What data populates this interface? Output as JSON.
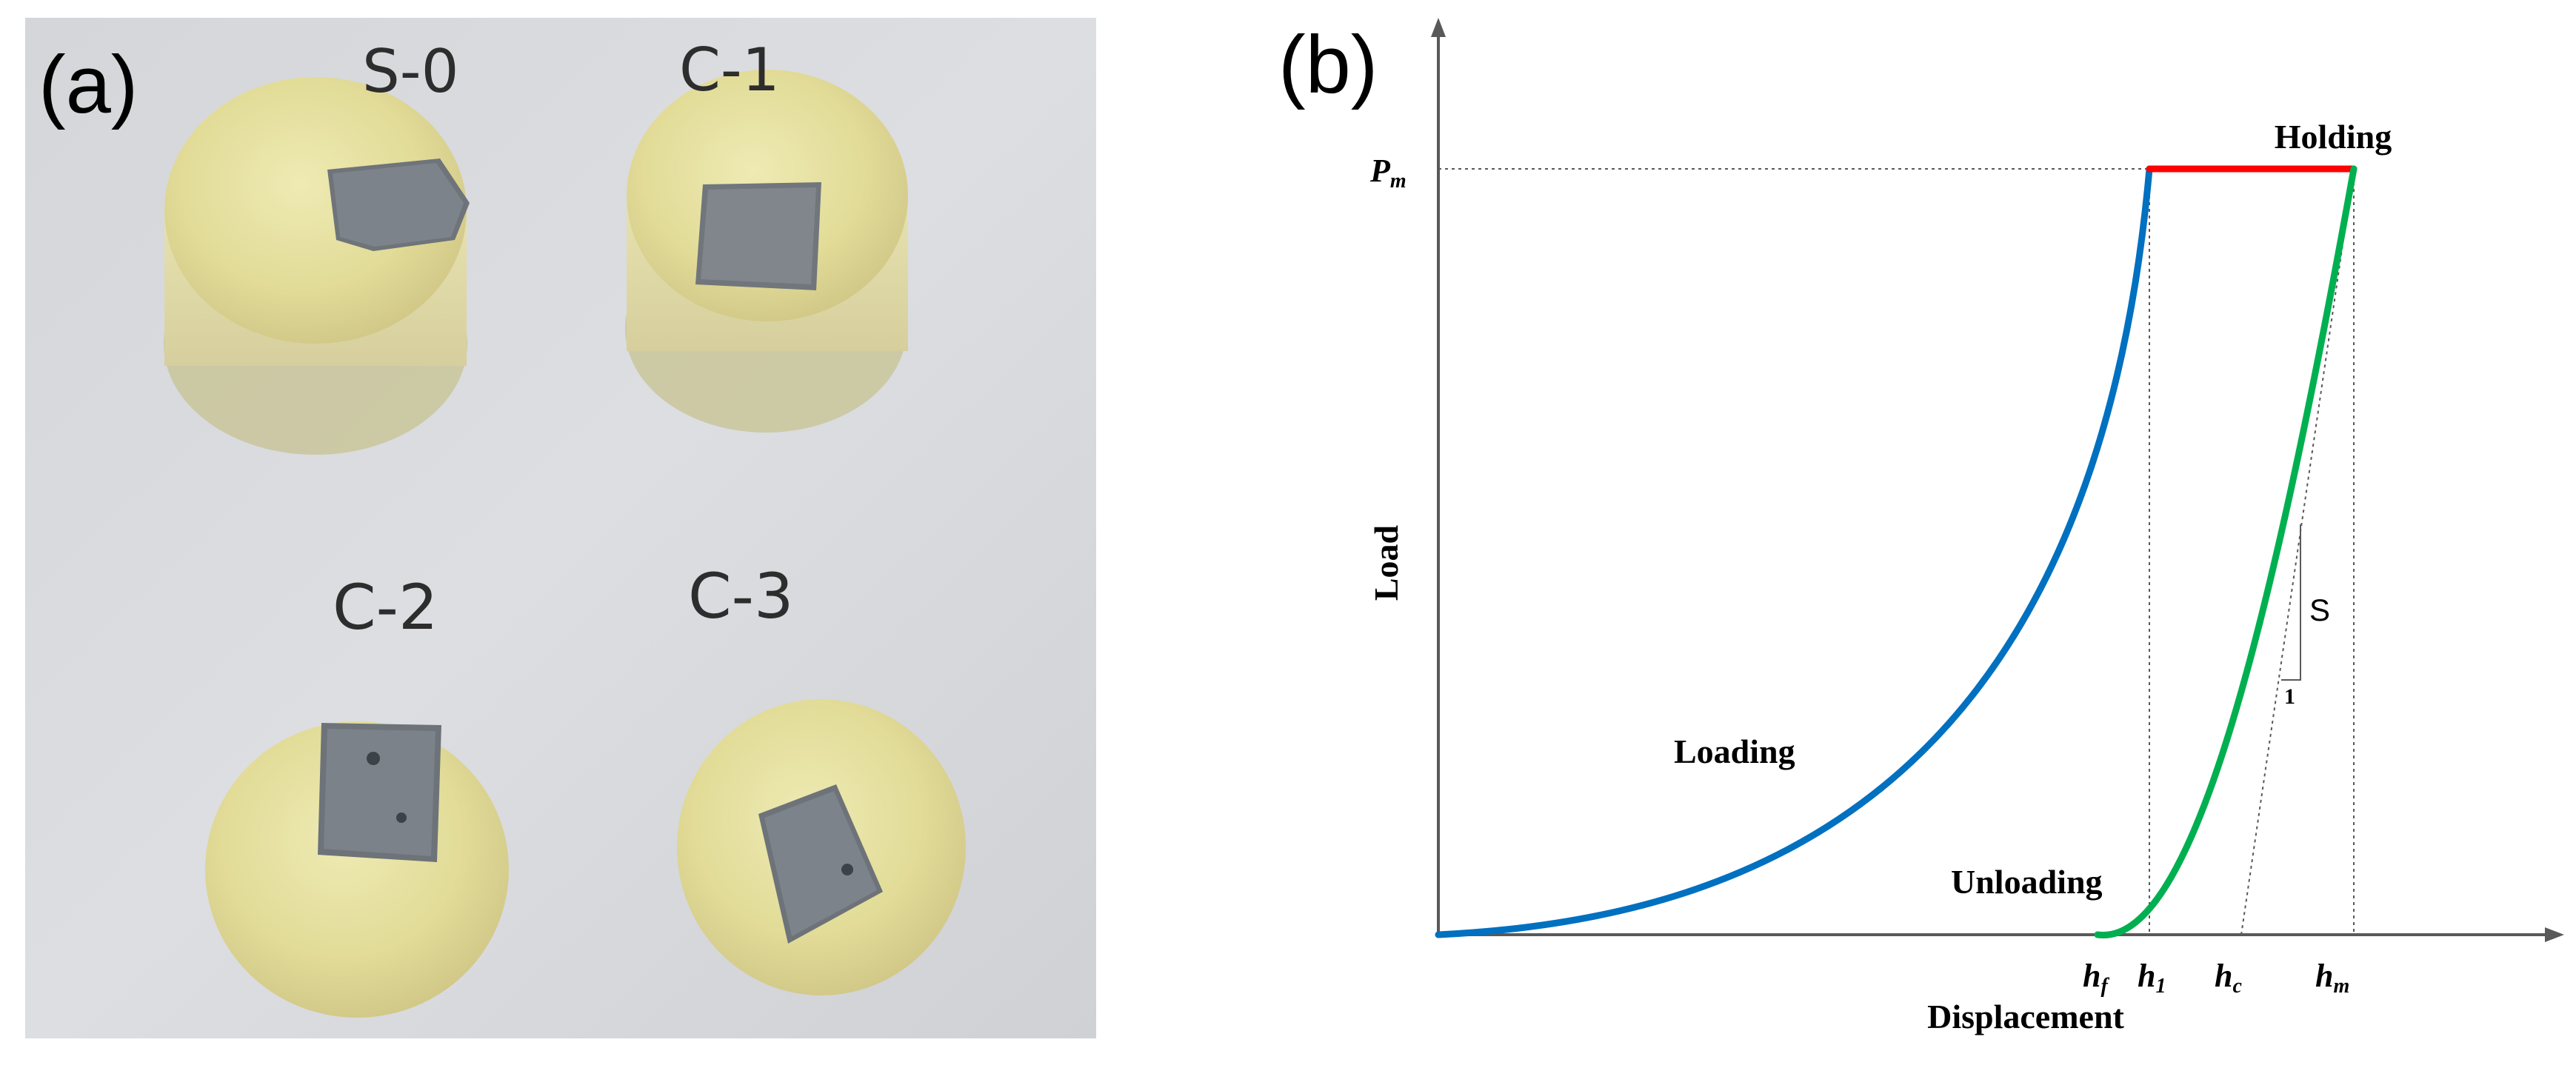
{
  "panel_a": {
    "label": "(a)",
    "samples": [
      {
        "label": "S-0"
      },
      {
        "label": "C-1"
      },
      {
        "label": "C-2"
      },
      {
        "label": "C-3"
      }
    ]
  },
  "panel_b": {
    "label": "(b)",
    "y_axis_label": "Load",
    "x_axis_label": "Displacement",
    "pm_label": "P",
    "pm_sub": "m",
    "holding_label": "Holding",
    "loading_label": "Loading",
    "unloading_label": "Unloading",
    "stiffness_label": "S",
    "slope_unit_label": "1",
    "x_ticks": [
      {
        "base": "h",
        "sub": "f"
      },
      {
        "base": "h",
        "sub": "1"
      },
      {
        "base": "h",
        "sub": "c"
      },
      {
        "base": "h",
        "sub": "m"
      }
    ],
    "colors": {
      "loading": "#0070c0",
      "holding": "#ff0000",
      "unloading": "#00b050",
      "axis": "#595959",
      "guide": "#595959"
    }
  }
}
